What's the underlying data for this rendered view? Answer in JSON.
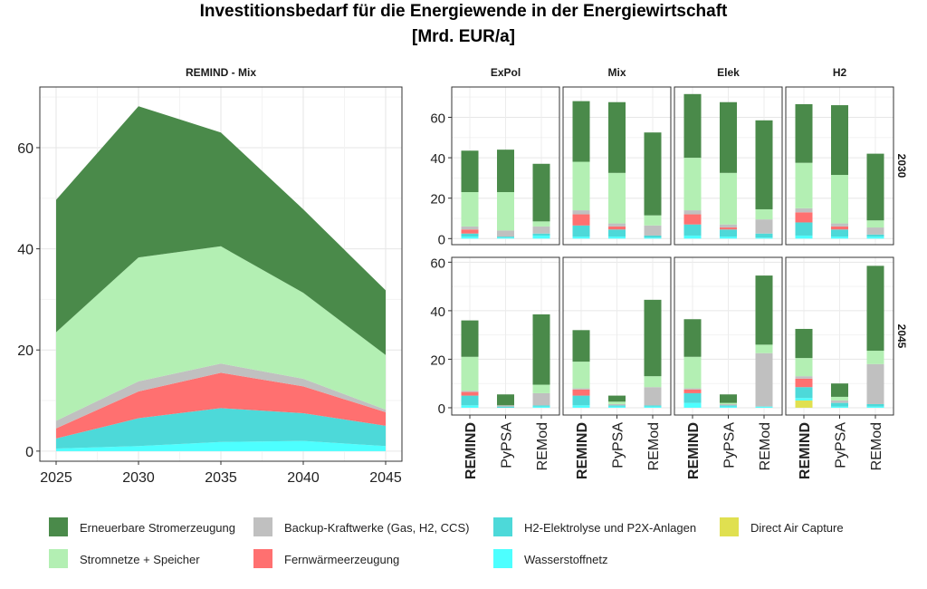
{
  "title_line1": "Investitionsbedarf für die Energiewende in der Energiewirtschaft",
  "title_line2": "[Mrd. EUR/a]",
  "colors": {
    "Erneuerbare Stromerzeugung": "#4a8a4a",
    "Stromnetze + Speicher": "#b3efb3",
    "Backup-Kraftwerke (Gas, H2, CCS)": "#c0c0c0",
    "Fernwärmeerzeugung": "#ff7070",
    "H2-Elektrolyse und P2X-Anlagen": "#4dd9d9",
    "Wasserstoffnetz": "#4dffff",
    "Direct Air Capture": "#e0e050"
  },
  "legend": [
    "Erneuerbare Stromerzeugung",
    "Backup-Kraftwerke (Gas, H2, CCS)",
    "H2-Elektrolyse und P2X-Anlagen",
    "Direct Air Capture",
    "Stromnetze + Speicher",
    "Fernwärmeerzeugung",
    "Wasserstoffnetz"
  ],
  "chart_data": [
    {
      "type": "area",
      "title": "REMIND - Mix",
      "x": [
        2025,
        2030,
        2035,
        2040,
        2045
      ],
      "ylim": [
        -2,
        72
      ],
      "yticks": [
        0,
        20,
        40,
        60
      ],
      "stack_order_bottom_to_top": [
        "Wasserstoffnetz",
        "H2-Elektrolyse und P2X-Anlagen",
        "Fernwärmeerzeugung",
        "Backup-Kraftwerke (Gas, H2, CCS)",
        "Stromnetze + Speicher",
        "Erneuerbare Stromerzeugung"
      ],
      "series": [
        {
          "name": "Wasserstoffnetz",
          "values": [
            0.5,
            1.0,
            1.8,
            2.0,
            1.0
          ]
        },
        {
          "name": "H2-Elektrolyse und P2X-Anlagen",
          "values": [
            2.0,
            5.5,
            6.7,
            5.5,
            4.0
          ]
        },
        {
          "name": "Fernwärmeerzeugung",
          "values": [
            2.0,
            5.3,
            7.0,
            5.3,
            2.7
          ]
        },
        {
          "name": "Backup-Kraftwerke (Gas, H2, CCS)",
          "values": [
            1.5,
            2.0,
            1.8,
            1.5,
            0.5
          ]
        },
        {
          "name": "Stromnetze + Speicher",
          "values": [
            17.5,
            24.5,
            23.2,
            17.0,
            10.8
          ]
        },
        {
          "name": "Erneuerbare Stromerzeugung",
          "values": [
            26.2,
            29.9,
            22.5,
            16.5,
            12.8
          ]
        }
      ]
    },
    {
      "type": "bar",
      "stacked": true,
      "facet_columns": [
        "ExPol",
        "Mix",
        "Elek",
        "H2"
      ],
      "facet_rows": [
        "2030",
        "2045"
      ],
      "categories": [
        "REMIND",
        "PyPSA",
        "REMod"
      ],
      "highlighted_category": "REMIND",
      "stack_order_bottom_to_top": [
        "Direct Air Capture",
        "Wasserstoffnetz",
        "H2-Elektrolyse und P2X-Anlagen",
        "Fernwärmeerzeugung",
        "Backup-Kraftwerke (Gas, H2, CCS)",
        "Stromnetze + Speicher",
        "Erneuerbare Stromerzeugung"
      ],
      "ylim_2030": [
        -3,
        75
      ],
      "yticks_2030": [
        0,
        20,
        40,
        60
      ],
      "ylim_2045": [
        -3,
        62
      ],
      "yticks_2045": [
        0,
        20,
        40,
        60
      ],
      "panels": [
        {
          "column": "ExPol",
          "row": "2030",
          "bars": [
            [
              0,
              1.0,
              1.5,
              2.0,
              1.5,
              17.0,
              20.5
            ],
            [
              0,
              0.5,
              0.5,
              0,
              3.0,
              19.0,
              21.0
            ],
            [
              0,
              1.5,
              1.0,
              0,
              3.5,
              2.5,
              28.5
            ]
          ]
        },
        {
          "column": "Mix",
          "row": "2030",
          "bars": [
            [
              0,
              1.0,
              5.5,
              5.5,
              2.0,
              24.0,
              30.0
            ],
            [
              0,
              1.0,
              3.5,
              1.5,
              1.5,
              25.0,
              35.0
            ],
            [
              0,
              0.5,
              1.0,
              0,
              5.0,
              5.0,
              41.0
            ]
          ]
        },
        {
          "column": "Elek",
          "row": "2030",
          "bars": [
            [
              0,
              1.5,
              5.5,
              5.0,
              2.0,
              26.0,
              31.5
            ],
            [
              0,
              1.0,
              3.5,
              1.0,
              1.5,
              25.5,
              35.0
            ],
            [
              0,
              0.5,
              2.0,
              0,
              7.0,
              5.0,
              44.0
            ]
          ]
        },
        {
          "column": "H2",
          "row": "2030",
          "bars": [
            [
              0,
              1.5,
              6.5,
              5.0,
              2.0,
              22.5,
              29.0
            ],
            [
              0,
              1.0,
              3.5,
              1.5,
              1.5,
              24.0,
              34.5
            ],
            [
              0,
              1.0,
              1.0,
              0,
              3.5,
              3.5,
              33.0
            ]
          ]
        },
        {
          "column": "ExPol",
          "row": "2045",
          "bars": [
            [
              0,
              1.0,
              4.0,
              1.5,
              0.5,
              14.0,
              15.0
            ],
            [
              0,
              0,
              0.5,
              0,
              0.5,
              0,
              4.5
            ],
            [
              0,
              0.5,
              0.5,
              0,
              5.0,
              3.5,
              29.0
            ]
          ]
        },
        {
          "column": "Mix",
          "row": "2045",
          "bars": [
            [
              0,
              1.0,
              4.0,
              2.5,
              0.5,
              11.0,
              13.0
            ],
            [
              0,
              0.5,
              0.5,
              0,
              0.5,
              1.0,
              2.5
            ],
            [
              0,
              0.5,
              0.5,
              0,
              7.5,
              4.5,
              31.5
            ]
          ]
        },
        {
          "column": "Elek",
          "row": "2045",
          "bars": [
            [
              0,
              2.0,
              4.0,
              1.5,
              0.5,
              13.0,
              15.5
            ],
            [
              0,
              0.5,
              0.5,
              0,
              0.5,
              0.5,
              3.5
            ],
            [
              0,
              0.5,
              0,
              0,
              22.0,
              3.5,
              28.5
            ]
          ]
        },
        {
          "column": "H2",
          "row": "2045",
          "bars": [
            [
              3.0,
              1.0,
              4.5,
              3.5,
              1.0,
              7.5,
              12.0
            ],
            [
              0,
              0.5,
              1.5,
              0,
              1.0,
              1.5,
              5.5
            ],
            [
              0,
              0.5,
              1.0,
              0,
              16.5,
              5.5,
              35.0
            ]
          ]
        }
      ]
    }
  ]
}
